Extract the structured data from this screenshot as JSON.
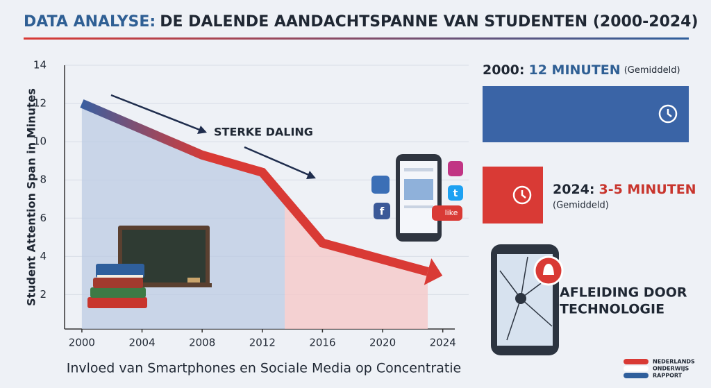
{
  "chart_data": {
    "type": "line",
    "title_lead": "DATA ANALYSE:",
    "title": "DE DALENDE AANDACHTSPANNE VAN STUDENTEN (2000-2024)",
    "y_label": "Student Attention Span in Minutes",
    "x_label": "Invloed van Smartphones en Sociale Media op Concentratie",
    "annotation": "STERKE DALING",
    "x": [
      2000,
      2008,
      2012,
      2016,
      2023
    ],
    "series": [
      {
        "color": "#d93a35",
        "values": [
          12,
          9.3,
          8.4,
          4.7,
          3.2
        ]
      }
    ],
    "xlim": [
      1998.85,
      2024.8
    ],
    "ylim": [
      0.2,
      14
    ],
    "xticks": [
      2000,
      2004,
      2008,
      2012,
      2016,
      2020,
      2024
    ],
    "yticks": [
      2,
      4,
      6,
      8,
      10,
      12,
      14
    ],
    "grid": true
  },
  "panel": {
    "first": {
      "year": "2000:",
      "amount": "12 MINUTEN",
      "note": "(Gemiddeld)"
    },
    "second": {
      "year": "2024:",
      "amount": "3-5 MINUTEN",
      "note": "(Gemiddeld)"
    },
    "distraction": [
      "AFLEIDING DOOR",
      "TECHNOLOGIE"
    ],
    "like_badge": "like",
    "social_icons": [
      "t",
      "f"
    ]
  },
  "footer": {
    "logo": [
      "NEDERLANDS",
      "ONDERWIJS",
      "RAPPORT"
    ]
  }
}
